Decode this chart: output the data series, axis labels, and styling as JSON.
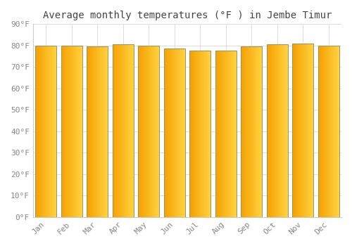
{
  "title": "Average monthly temperatures (°F ) in Jembe Timur",
  "months": [
    "Jan",
    "Feb",
    "Mar",
    "Apr",
    "May",
    "Jun",
    "Jul",
    "Aug",
    "Sep",
    "Oct",
    "Nov",
    "Dec"
  ],
  "values": [
    80.0,
    80.0,
    79.5,
    80.5,
    79.8,
    78.5,
    77.5,
    77.5,
    79.5,
    80.5,
    81.0,
    80.0
  ],
  "bar_color_left": "#F5A000",
  "bar_color_right": "#FFD340",
  "edge_color": "#A09060",
  "background_color": "#ffffff",
  "plot_bg_color": "#ffffff",
  "grid_color": "#dddddd",
  "yticks": [
    0,
    10,
    20,
    30,
    40,
    50,
    60,
    70,
    80,
    90
  ],
  "ylim": [
    0,
    90
  ],
  "ylabel_suffix": "°F",
  "title_fontsize": 10,
  "tick_fontsize": 8,
  "font_family": "monospace"
}
